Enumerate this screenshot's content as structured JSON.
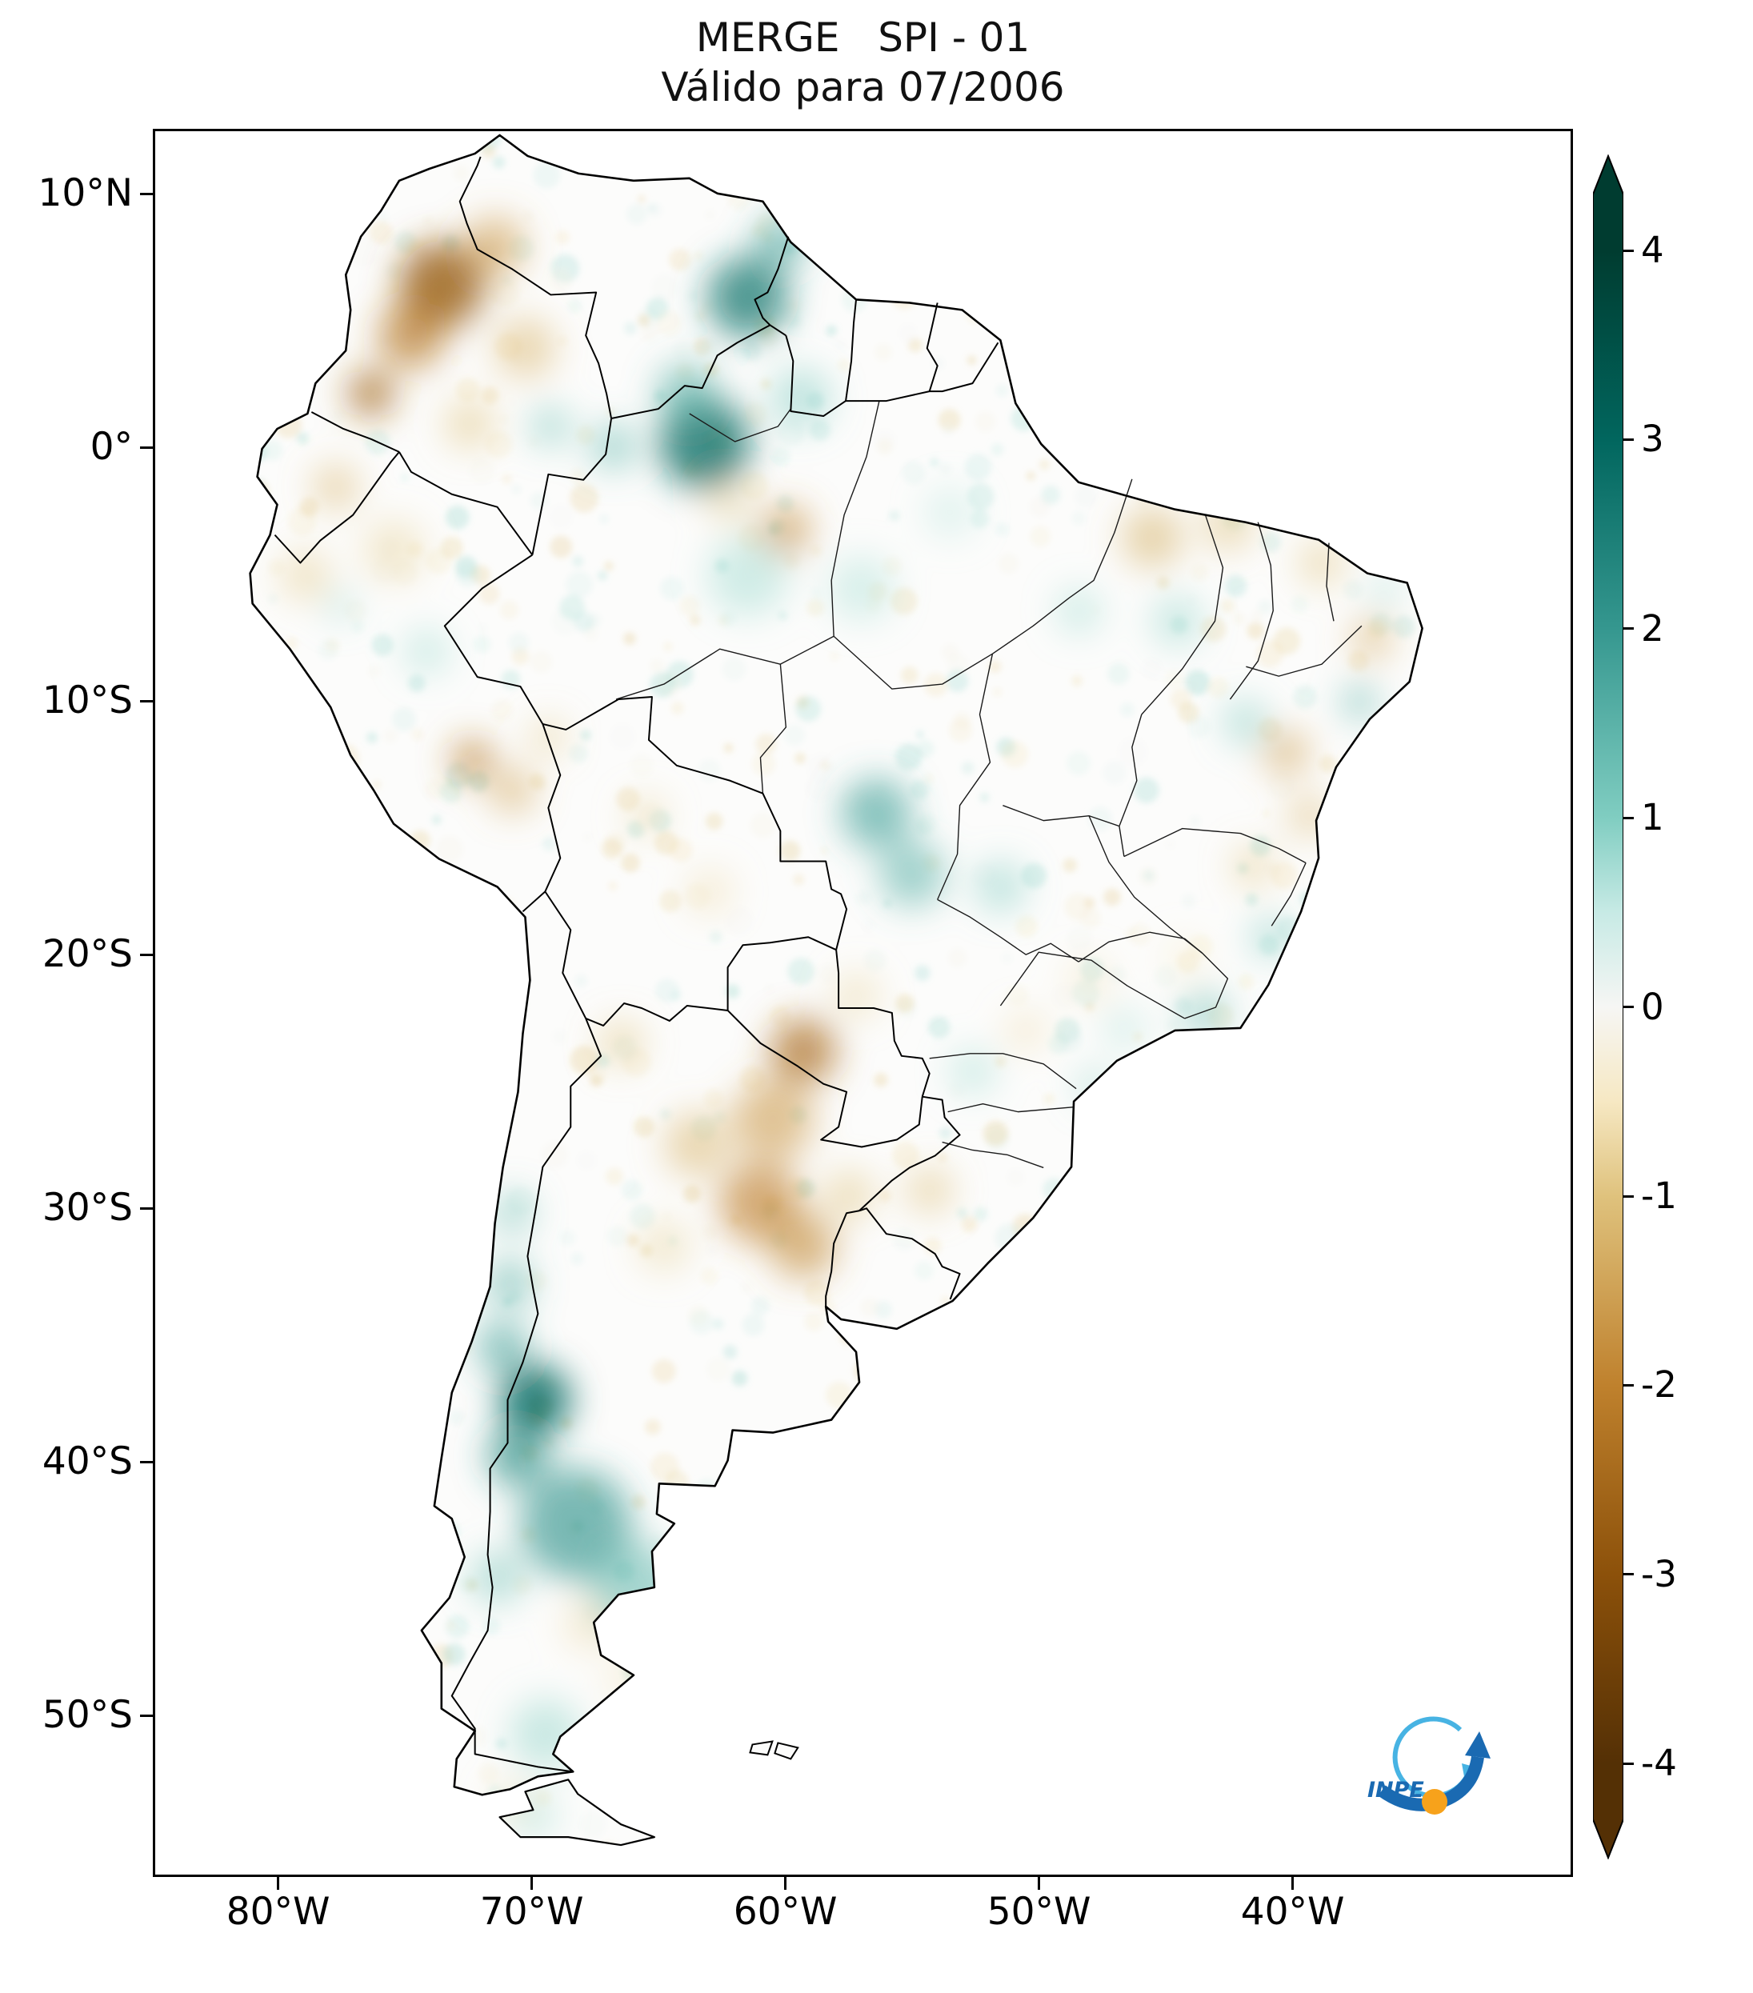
{
  "title": {
    "line1": "MERGE   SPI - 01",
    "line2": "Válido para 07/2006"
  },
  "axes": {
    "y_ticks": [
      {
        "label": "10°N",
        "lat": 10
      },
      {
        "label": "0°",
        "lat": 0
      },
      {
        "label": "10°S",
        "lat": -10
      },
      {
        "label": "20°S",
        "lat": -20
      },
      {
        "label": "30°S",
        "lat": -30
      },
      {
        "label": "40°S",
        "lat": -40
      },
      {
        "label": "50°S",
        "lat": -50
      }
    ],
    "x_ticks": [
      {
        "label": "80°W",
        "lon": -80
      },
      {
        "label": "70°W",
        "lon": -70
      },
      {
        "label": "60°W",
        "lon": -60
      },
      {
        "label": "50°W",
        "lon": -50
      },
      {
        "label": "40°W",
        "lon": -40
      }
    ]
  },
  "colorbar": {
    "ticks": [
      {
        "label": "4",
        "value": 4
      },
      {
        "label": "3",
        "value": 3
      },
      {
        "label": "2",
        "value": 2
      },
      {
        "label": "1",
        "value": 1
      },
      {
        "label": "0",
        "value": 0
      },
      {
        "label": "-1",
        "value": -1
      },
      {
        "label": "-2",
        "value": -2
      },
      {
        "label": "-3",
        "value": -3
      },
      {
        "label": "-4",
        "value": -4
      }
    ],
    "stops": [
      {
        "value": 4,
        "color": "#003c30"
      },
      {
        "value": 3,
        "color": "#01665e"
      },
      {
        "value": 2,
        "color": "#35978f"
      },
      {
        "value": 1,
        "color": "#80cdc1"
      },
      {
        "value": 0.5,
        "color": "#c7eae5"
      },
      {
        "value": 0,
        "color": "#f6f6f4"
      },
      {
        "value": -0.5,
        "color": "#f6e8c3"
      },
      {
        "value": -1,
        "color": "#dfc27d"
      },
      {
        "value": -2,
        "color": "#bf812d"
      },
      {
        "value": -3,
        "color": "#8c510a"
      },
      {
        "value": -4,
        "color": "#543005"
      }
    ]
  },
  "logo": {
    "text": "INPE"
  },
  "chart_data": {
    "type": "heatmap",
    "title": "MERGE SPI - 01",
    "subtitle": "Válido para 07/2006",
    "product": "MERGE",
    "index": "SPI-01",
    "valid_for": "07/2006",
    "region": "South America",
    "lon_range": [
      -84.9,
      -28.9
    ],
    "lat_range": [
      -56.4,
      12.6
    ],
    "colorbar_range": [
      -4,
      4
    ],
    "colorbar_ticks": [
      4,
      3,
      2,
      1,
      0,
      -1,
      -2,
      -3,
      -4
    ],
    "palette": "brown-white-teal (BrBG-like), brown = dry (negative SPI), teal = wet (positive SPI)",
    "anomaly_regions": [
      {
        "lon": -61.5,
        "lat": 6.0,
        "r_deg": 1.6,
        "spi": 2.6
      },
      {
        "lon": -60.2,
        "lat": 8.2,
        "r_deg": 1.0,
        "spi": 1.8
      },
      {
        "lon": -63.2,
        "lat": 0.2,
        "r_deg": 1.8,
        "spi": 2.8
      },
      {
        "lon": -63.9,
        "lat": 2.2,
        "r_deg": 1.2,
        "spi": 1.6
      },
      {
        "lon": -66.8,
        "lat": 0.1,
        "r_deg": 0.9,
        "spi": 1.4
      },
      {
        "lon": -69.3,
        "lat": 0.9,
        "r_deg": 0.8,
        "spi": 1.2
      },
      {
        "lon": -59.4,
        "lat": 2.0,
        "r_deg": 1.2,
        "spi": 1.0
      },
      {
        "lon": -61.5,
        "lat": -5.0,
        "r_deg": 1.6,
        "spi": 0.8
      },
      {
        "lon": -57.0,
        "lat": -5.5,
        "r_deg": 1.3,
        "spi": 0.7
      },
      {
        "lon": -53.5,
        "lat": -2.5,
        "r_deg": 1.0,
        "spi": 0.6
      },
      {
        "lon": -74.2,
        "lat": -8.0,
        "r_deg": 0.9,
        "spi": 0.8
      },
      {
        "lon": -77.6,
        "lat": -6.2,
        "r_deg": 0.6,
        "spi": 0.9
      },
      {
        "lon": -56.4,
        "lat": -14.4,
        "r_deg": 1.4,
        "spi": 1.8
      },
      {
        "lon": -55.0,
        "lat": -16.8,
        "r_deg": 1.3,
        "spi": 1.5
      },
      {
        "lon": -51.5,
        "lat": -17.3,
        "r_deg": 1.0,
        "spi": 1.0
      },
      {
        "lon": -48.4,
        "lat": -6.4,
        "r_deg": 0.9,
        "spi": 0.8
      },
      {
        "lon": -44.5,
        "lat": -6.8,
        "r_deg": 1.0,
        "spi": 0.9
      },
      {
        "lon": -41.8,
        "lat": -10.8,
        "r_deg": 0.9,
        "spi": 1.0
      },
      {
        "lon": -37.3,
        "lat": -10.0,
        "r_deg": 0.7,
        "spi": 1.5
      },
      {
        "lon": -36.3,
        "lat": -5.6,
        "r_deg": 0.6,
        "spi": 0.9
      },
      {
        "lon": -40.8,
        "lat": -19.3,
        "r_deg": 0.8,
        "spi": 1.1
      },
      {
        "lon": -43.4,
        "lat": -22.3,
        "r_deg": 0.9,
        "spi": 1.3
      },
      {
        "lon": -46.6,
        "lat": -22.9,
        "r_deg": 0.8,
        "spi": 0.7
      },
      {
        "lon": -47.8,
        "lat": -25.2,
        "r_deg": 0.7,
        "spi": 0.9
      },
      {
        "lon": -52.6,
        "lat": -24.6,
        "r_deg": 0.9,
        "spi": 0.8
      },
      {
        "lon": -70.8,
        "lat": -30.2,
        "r_deg": 0.8,
        "spi": 1.3
      },
      {
        "lon": -70.9,
        "lat": -33.0,
        "r_deg": 0.9,
        "spi": 1.6
      },
      {
        "lon": -71.2,
        "lat": -35.5,
        "r_deg": 1.0,
        "spi": 1.8
      },
      {
        "lon": -69.9,
        "lat": -37.6,
        "r_deg": 1.4,
        "spi": 3.0
      },
      {
        "lon": -70.6,
        "lat": -39.8,
        "r_deg": 1.2,
        "spi": 2.2
      },
      {
        "lon": -68.3,
        "lat": -42.5,
        "r_deg": 2.2,
        "spi": 2.0
      },
      {
        "lon": -66.0,
        "lat": -45.0,
        "r_deg": 1.8,
        "spi": 1.4
      },
      {
        "lon": -71.4,
        "lat": -44.6,
        "r_deg": 1.0,
        "spi": 1.2
      },
      {
        "lon": -69.5,
        "lat": -50.8,
        "r_deg": 1.4,
        "spi": 0.9
      },
      {
        "lon": -70.0,
        "lat": -54.0,
        "r_deg": 0.9,
        "spi": 0.8
      },
      {
        "lon": -73.6,
        "lat": 6.5,
        "r_deg": 1.7,
        "spi": -2.8
      },
      {
        "lon": -74.8,
        "lat": 4.5,
        "r_deg": 1.3,
        "spi": -2.2
      },
      {
        "lon": -76.4,
        "lat": 2.2,
        "r_deg": 0.9,
        "spi": -2.6
      },
      {
        "lon": -71.5,
        "lat": 8.0,
        "r_deg": 1.2,
        "spi": -1.6
      },
      {
        "lon": -70.3,
        "lat": 4.0,
        "r_deg": 1.2,
        "spi": -1.2
      },
      {
        "lon": -72.5,
        "lat": 1.0,
        "r_deg": 1.0,
        "spi": -1.0
      },
      {
        "lon": -77.8,
        "lat": -1.5,
        "r_deg": 0.9,
        "spi": -1.2
      },
      {
        "lon": -79.0,
        "lat": -5.0,
        "r_deg": 1.0,
        "spi": -0.9
      },
      {
        "lon": -75.5,
        "lat": -4.0,
        "r_deg": 1.2,
        "spi": -0.8
      },
      {
        "lon": -60.0,
        "lat": -3.2,
        "r_deg": 1.0,
        "spi": -1.8
      },
      {
        "lon": -62.2,
        "lat": -2.2,
        "r_deg": 0.8,
        "spi": -0.9
      },
      {
        "lon": -45.5,
        "lat": -3.5,
        "r_deg": 1.2,
        "spi": -1.3
      },
      {
        "lon": -42.5,
        "lat": -3.0,
        "r_deg": 1.0,
        "spi": -1.1
      },
      {
        "lon": -38.8,
        "lat": -4.5,
        "r_deg": 0.9,
        "spi": -1.0
      },
      {
        "lon": -36.8,
        "lat": -7.5,
        "r_deg": 0.8,
        "spi": -1.4
      },
      {
        "lon": -40.2,
        "lat": -12.0,
        "r_deg": 0.9,
        "spi": -1.5
      },
      {
        "lon": -39.3,
        "lat": -14.5,
        "r_deg": 0.8,
        "spi": -1.2
      },
      {
        "lon": -41.5,
        "lat": -16.5,
        "r_deg": 0.8,
        "spi": -1.0
      },
      {
        "lon": -72.4,
        "lat": -12.3,
        "r_deg": 0.8,
        "spi": -2.2
      },
      {
        "lon": -70.8,
        "lat": -13.5,
        "r_deg": 0.9,
        "spi": -1.4
      },
      {
        "lon": -69.4,
        "lat": -11.4,
        "r_deg": 0.7,
        "spi": -1.0
      },
      {
        "lon": -65.5,
        "lat": -14.5,
        "r_deg": 0.8,
        "spi": -0.8
      },
      {
        "lon": -63.0,
        "lat": -17.5,
        "r_deg": 0.9,
        "spi": -0.7
      },
      {
        "lon": -59.3,
        "lat": -23.8,
        "r_deg": 1.3,
        "spi": -2.4
      },
      {
        "lon": -57.2,
        "lat": -21.6,
        "r_deg": 0.9,
        "spi": -0.8
      },
      {
        "lon": -60.5,
        "lat": -26.5,
        "r_deg": 1.6,
        "spi": -1.6
      },
      {
        "lon": -61.0,
        "lat": -29.8,
        "r_deg": 1.6,
        "spi": -2.0
      },
      {
        "lon": -59.3,
        "lat": -31.5,
        "r_deg": 1.3,
        "spi": -1.8
      },
      {
        "lon": -63.5,
        "lat": -27.5,
        "r_deg": 1.3,
        "spi": -1.2
      },
      {
        "lon": -66.5,
        "lat": -23.5,
        "r_deg": 0.9,
        "spi": -1.0
      },
      {
        "lon": -57.5,
        "lat": -29.5,
        "r_deg": 1.0,
        "spi": -1.0
      },
      {
        "lon": -54.3,
        "lat": -29.3,
        "r_deg": 0.9,
        "spi": -1.1
      },
      {
        "lon": -64.8,
        "lat": -31.5,
        "r_deg": 1.0,
        "spi": -0.8
      },
      {
        "lon": -50.5,
        "lat": -23.0,
        "r_deg": 0.8,
        "spi": -0.7
      },
      {
        "lon": -48.0,
        "lat": -21.0,
        "r_deg": 0.9,
        "spi": -0.6
      },
      {
        "lon": -44.2,
        "lat": -20.1,
        "r_deg": 0.8,
        "spi": -0.5
      },
      {
        "lon": -67.8,
        "lat": -46.5,
        "r_deg": 1.0,
        "spi": -0.7
      },
      {
        "lon": -66.2,
        "lat": -48.6,
        "r_deg": 0.9,
        "spi": -0.6
      },
      {
        "lon": -70.9,
        "lat": -53.4,
        "r_deg": 0.7,
        "spi": -0.7
      }
    ]
  }
}
